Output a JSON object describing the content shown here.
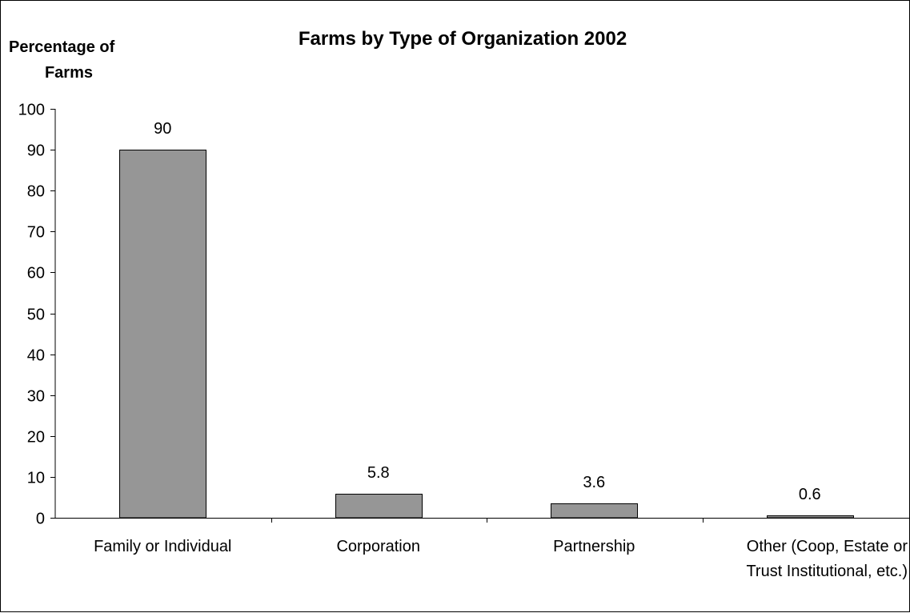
{
  "chart_data": {
    "type": "bar",
    "title": "Farms by Type of Organization 2002",
    "ylabel": [
      "Percentage of",
      "Farms"
    ],
    "xlabel": "",
    "categories": [
      [
        "Family or Individual"
      ],
      [
        "Corporation"
      ],
      [
        "Partnership"
      ],
      [
        "Other (Coop, Estate or",
        "Trust Institutional, etc.)"
      ]
    ],
    "values": [
      90,
      5.8,
      3.6,
      0.6
    ],
    "data_labels": [
      "90",
      "5.8",
      "3.6",
      "0.6"
    ],
    "ylim": [
      0,
      100
    ],
    "yticks": [
      0,
      10,
      20,
      30,
      40,
      50,
      60,
      70,
      80,
      90,
      100
    ],
    "grid": false,
    "legend": "none",
    "bar_color": "#969696",
    "bar_edge_color": "#000000"
  }
}
